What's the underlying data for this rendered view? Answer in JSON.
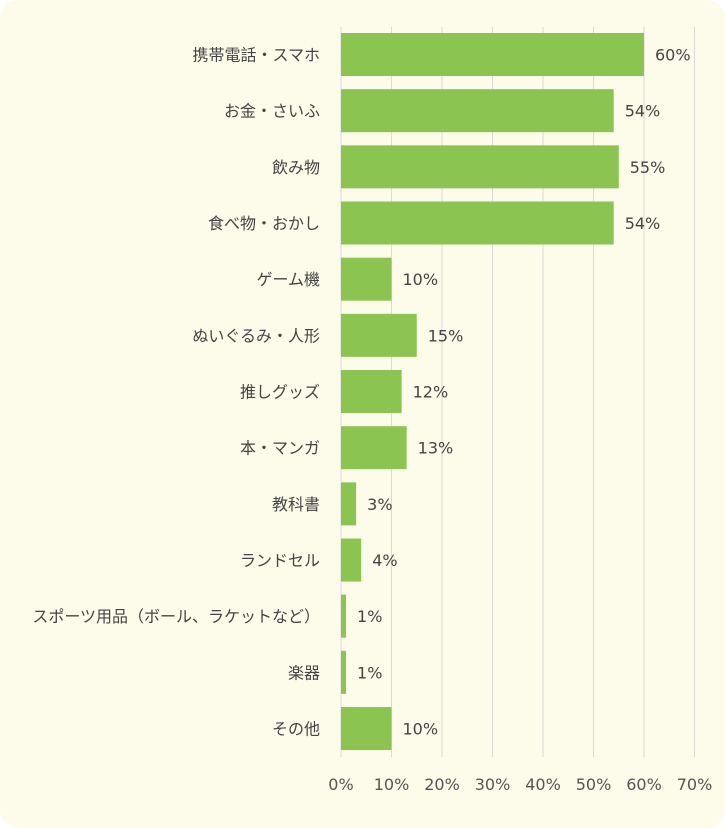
{
  "chart_data": {
    "type": "bar",
    "orientation": "horizontal",
    "categories": [
      "携帯電話・スマホ",
      "お金・さいふ",
      "飲み物",
      "食べ物・おかし",
      "ゲーム機",
      "ぬいぐるみ・人形",
      "推しグッズ",
      "本・マンガ",
      "教科書",
      "ランドセル",
      "スポーツ用品（ボール、ラケットなど）",
      "楽器",
      "その他"
    ],
    "values": [
      60,
      54,
      55,
      54,
      10,
      15,
      12,
      13,
      3,
      4,
      1,
      1,
      10
    ],
    "value_labels": [
      "60%",
      "54%",
      "55%",
      "54%",
      "10%",
      "15%",
      "12%",
      "13%",
      "3%",
      "4%",
      "1%",
      "1%",
      "10%"
    ],
    "xlim": [
      0,
      70
    ],
    "xticks": [
      "0%",
      "10%",
      "20%",
      "30%",
      "40%",
      "50%",
      "60%",
      "70%"
    ],
    "grid": true,
    "bar_color": "#8cc451",
    "background_color": "#fdfbe9"
  }
}
